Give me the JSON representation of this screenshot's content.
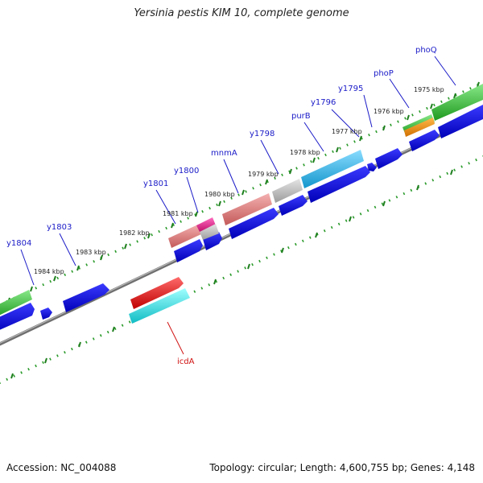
{
  "title": "Yersinia pestis KIM 10, complete genome",
  "footer": {
    "accession": "Accession: NC_004088",
    "topology": "Topology: circular; Length: 4,600,755 bp; Genes: 4,148"
  },
  "colors": {
    "background": "#ffffff",
    "backbone": "#7a7a7a",
    "tick_major": "#1f8a1f",
    "tick_minor": "#3aa03a",
    "gene_forward": "#1010e0",
    "label_forward": "#1a1ac8",
    "label_reverse": "#d01010"
  },
  "scale_ticks": [
    "1975 kbp",
    "1976 kbp",
    "1977 kbp",
    "1978 kbp",
    "1979 kbp",
    "1980 kbp",
    "1981 kbp",
    "1982 kbp",
    "1983 kbp",
    "1984 kbp"
  ],
  "gene_labels": [
    {
      "name": "phoQ",
      "strand": "forward"
    },
    {
      "name": "phoP",
      "strand": "forward"
    },
    {
      "name": "y1795",
      "strand": "forward"
    },
    {
      "name": "y1796",
      "strand": "forward"
    },
    {
      "name": "purB",
      "strand": "forward"
    },
    {
      "name": "y1798",
      "strand": "forward"
    },
    {
      "name": "mnmA",
      "strand": "forward"
    },
    {
      "name": "y1800",
      "strand": "forward"
    },
    {
      "name": "y1801",
      "strand": "forward"
    },
    {
      "name": "y1803",
      "strand": "forward"
    },
    {
      "name": "y1804",
      "strand": "forward"
    },
    {
      "name": "icdA",
      "strand": "reverse"
    }
  ],
  "feature_colors": [
    {
      "name": "green-feature",
      "color": "#33b833"
    },
    {
      "name": "orange-feature",
      "color": "#f08c00"
    },
    {
      "name": "cyan-feature",
      "color": "#22b4e6"
    },
    {
      "name": "grey-feature",
      "color": "#bdbdbd"
    },
    {
      "name": "salmon-feature",
      "color": "#e07a7a"
    },
    {
      "name": "pink-feature",
      "color": "#e89a9a"
    },
    {
      "name": "magenta-feature",
      "color": "#e0208c"
    },
    {
      "name": "red-feature",
      "color": "#e61010"
    },
    {
      "name": "aqua-feature",
      "color": "#1ce0e8"
    }
  ]
}
